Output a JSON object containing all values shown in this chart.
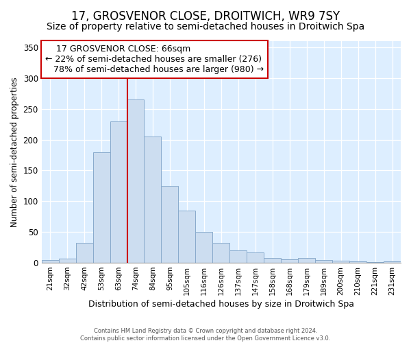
{
  "title": "17, GROSVENOR CLOSE, DROITWICH, WR9 7SY",
  "subtitle": "Size of property relative to semi-detached houses in Droitwich Spa",
  "xlabel": "Distribution of semi-detached houses by size in Droitwich Spa",
  "ylabel": "Number of semi-detached properties",
  "bin_labels": [
    "21sqm",
    "32sqm",
    "42sqm",
    "53sqm",
    "63sqm",
    "74sqm",
    "84sqm",
    "95sqm",
    "105sqm",
    "116sqm",
    "126sqm",
    "137sqm",
    "147sqm",
    "158sqm",
    "168sqm",
    "179sqm",
    "189sqm",
    "200sqm",
    "210sqm",
    "221sqm",
    "231sqm"
  ],
  "bar_values": [
    5,
    7,
    32,
    180,
    230,
    265,
    205,
    125,
    85,
    50,
    32,
    20,
    17,
    8,
    6,
    8,
    5,
    3,
    2,
    1,
    2
  ],
  "bar_color": "#ccddf0",
  "bar_edge_color": "#88aacc",
  "marker_bin_index": 4,
  "marker_label": "17 GROSVENOR CLOSE: 66sqm",
  "smaller_pct": "22%",
  "smaller_n": "276",
  "larger_pct": "78%",
  "larger_n": "980",
  "marker_line_color": "#cc0000",
  "annotation_box_color": "#cc0000",
  "ylim": [
    0,
    360
  ],
  "yticks": [
    0,
    50,
    100,
    150,
    200,
    250,
    300,
    350
  ],
  "footer1": "Contains HM Land Registry data © Crown copyright and database right 2024.",
  "footer2": "Contains public sector information licensed under the Open Government Licence v3.0.",
  "background_color": "#ddeeff",
  "title_fontsize": 12,
  "subtitle_fontsize": 10,
  "annotation_fontsize": 9
}
